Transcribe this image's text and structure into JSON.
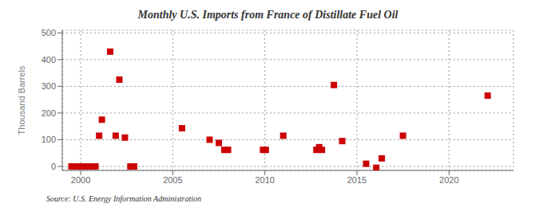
{
  "chart_data": {
    "type": "scatter",
    "title": "Monthly U.S. Imports from France of Distillate Fuel Oil",
    "ylabel": "Thousand Barrels",
    "annotations": [
      "Source: U.S. Energy Information Administration"
    ],
    "x": [
      1999.5,
      1999.6,
      1999.7,
      1999.8,
      1999.9,
      2000.0,
      2000.1,
      2000.2,
      2000.3,
      2000.4,
      2000.5,
      2000.6,
      2000.7,
      2000.8,
      2001.0,
      2001.15,
      2001.6,
      2001.9,
      2002.1,
      2002.4,
      2002.7,
      2002.9,
      2005.5,
      2007.0,
      2007.5,
      2007.8,
      2008.0,
      2009.9,
      2010.05,
      2011.0,
      2012.8,
      2012.95,
      2013.1,
      2013.75,
      2014.2,
      2015.5,
      2016.05,
      2016.35,
      2017.5,
      2022.1
    ],
    "values": [
      0,
      0,
      0,
      0,
      0,
      0,
      0,
      0,
      0,
      0,
      0,
      0,
      0,
      0,
      115,
      175,
      430,
      115,
      325,
      108,
      0,
      0,
      143,
      100,
      88,
      62,
      62,
      62,
      62,
      115,
      62,
      72,
      62,
      305,
      95,
      10,
      -5,
      30,
      115,
      265
    ],
    "color": "#cc0000",
    "marker": "square",
    "xlim": [
      1999.0,
      2023.5
    ],
    "ylim": [
      -15,
      510
    ],
    "xticks": [
      2000,
      2005,
      2010,
      2015,
      2020
    ],
    "yticks": [
      0,
      100,
      200,
      300,
      400,
      500
    ],
    "grid": true
  }
}
